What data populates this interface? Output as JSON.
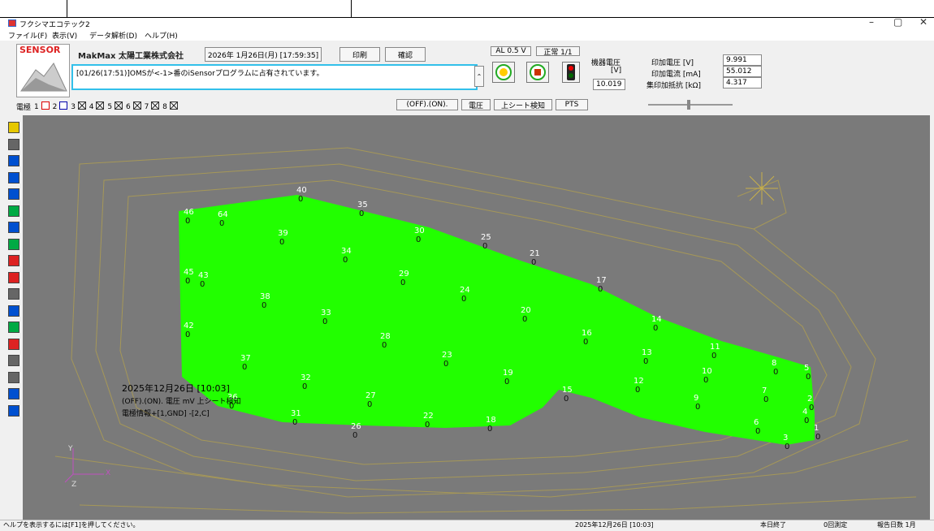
{
  "window": {
    "title": "フクシマエコテック2",
    "min": "–",
    "restore": "▢",
    "close": "✕"
  },
  "menu": [
    "ファイル(F)",
    "表示(V)",
    "データ解析(D)",
    "ヘルプ(H)"
  ],
  "header": {
    "logo": "SENSOR",
    "brand": "MakMax 太陽工業株式会社",
    "datetime": "2026年 1月26日(月) [17:59:35]",
    "print": "印刷",
    "confirm": "確認",
    "message": "[01/26(17:51)]OMSが<-1>番のiSensorプログラムに占有されています。",
    "al": "AL 0.5 V",
    "status": "正常 1/1",
    "sensor_voltage_label1": "機器電圧",
    "sensor_voltage_label2": "[V]",
    "sensor_voltage_value": "10.019",
    "applied_voltage_label": "印加電圧 [V]",
    "applied_voltage_value": "9.991",
    "applied_current_label": "印加電流 [mA]",
    "applied_current_value": "55.012",
    "resistance_label": "集印加抵抗 [kΩ]",
    "resistance_value": "4.317"
  },
  "toolbar2": {
    "electrode_label": "電極",
    "items": [
      "1",
      "2",
      "3",
      "4",
      "5",
      "6",
      "7",
      "8"
    ],
    "off_on": "(OFF).(ON).",
    "voltage": "電圧",
    "upper_sheet": "上シート検知",
    "pts": "PTS"
  },
  "overlay": {
    "date": "2025年12月26日 [10:03]",
    "line2": "(OFF).(ON). 電圧 mV 上シート検知",
    "line3": "電極情報+[1,GND] -[2,C]"
  },
  "axes": {
    "x": "X",
    "y": "Y",
    "z": "Z"
  },
  "points": [
    {
      "n": "40",
      "v": "0"
    },
    {
      "n": "35",
      "v": "0"
    },
    {
      "n": "46",
      "v": "0"
    },
    {
      "n": "64",
      "v": "0"
    },
    {
      "n": "39",
      "v": "0"
    },
    {
      "n": "30",
      "v": "0"
    },
    {
      "n": "25",
      "v": "0"
    },
    {
      "n": "34",
      "v": "0"
    },
    {
      "n": "21",
      "v": "0"
    },
    {
      "n": "45",
      "v": "0"
    },
    {
      "n": "43",
      "v": "0"
    },
    {
      "n": "29",
      "v": "0"
    },
    {
      "n": "38",
      "v": "0"
    },
    {
      "n": "24",
      "v": "0"
    },
    {
      "n": "17",
      "v": "0"
    },
    {
      "n": "33",
      "v": "0"
    },
    {
      "n": "20",
      "v": "0"
    },
    {
      "n": "14",
      "v": "0"
    },
    {
      "n": "42",
      "v": "0"
    },
    {
      "n": "28",
      "v": "0"
    },
    {
      "n": "16",
      "v": "0"
    },
    {
      "n": "13",
      "v": "0"
    },
    {
      "n": "11",
      "v": "0"
    },
    {
      "n": "37",
      "v": "0"
    },
    {
      "n": "23",
      "v": "0"
    },
    {
      "n": "10",
      "v": "0"
    },
    {
      "n": "8",
      "v": "0"
    },
    {
      "n": "5",
      "v": "0"
    },
    {
      "n": "32",
      "v": "0"
    },
    {
      "n": "19",
      "v": "0"
    },
    {
      "n": "12",
      "v": "0"
    },
    {
      "n": "7",
      "v": "0"
    },
    {
      "n": "27",
      "v": "0"
    },
    {
      "n": "15",
      "v": "0"
    },
    {
      "n": "9",
      "v": "0"
    },
    {
      "n": "2",
      "v": "0"
    },
    {
      "n": "4",
      "v": "0"
    },
    {
      "n": "36",
      "v": "0"
    },
    {
      "n": "31",
      "v": "0"
    },
    {
      "n": "22",
      "v": "0"
    },
    {
      "n": "18",
      "v": "0"
    },
    {
      "n": "26",
      "v": "0"
    },
    {
      "n": "6",
      "v": "0"
    },
    {
      "n": "1",
      "v": "0"
    },
    {
      "n": "3",
      "v": "0"
    }
  ],
  "status": {
    "hint": "ヘルプを表示するには[F1]を押してください。",
    "date": "2025年12月26日 [10:03]",
    "end": "本日終了",
    "count": "0回測定",
    "month": "報告日数 1月"
  },
  "colors": {
    "fill": "#22ff00",
    "background": "#7a7a7a",
    "accent": "#33c0ea"
  }
}
